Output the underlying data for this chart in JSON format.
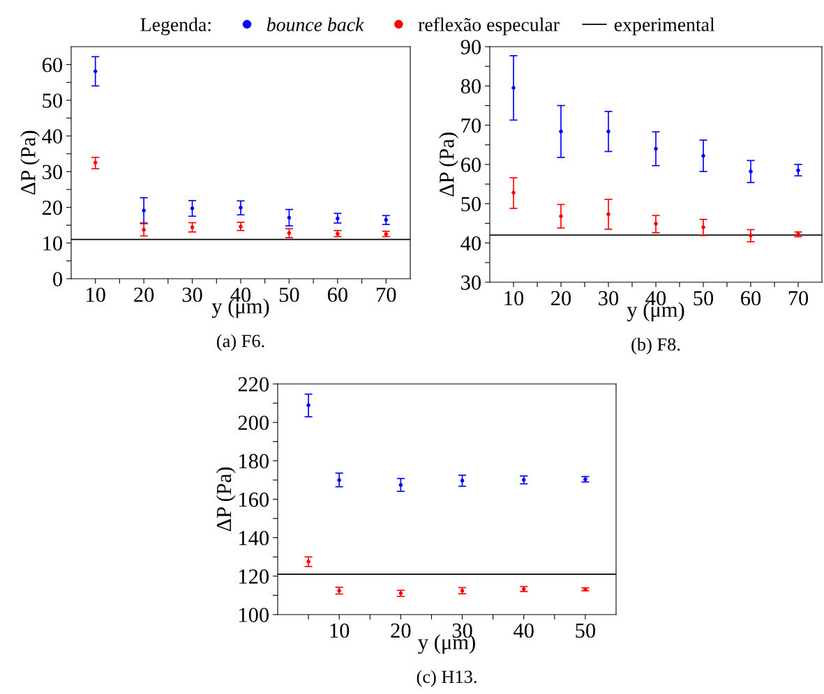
{
  "chart_data": [
    {
      "type": "scatter",
      "legend_title": "Legenda:",
      "legend": "top",
      "marker": "circle",
      "xlabel": "y (μm)",
      "ylabel": "ΔP (Pa)",
      "annotations": [
        "(a) F6."
      ],
      "x": [
        10,
        20,
        30,
        40,
        50,
        60,
        70
      ],
      "xlim": [
        5,
        75
      ],
      "ylim": [
        0,
        65
      ],
      "xticks": [
        10,
        {
          "value": 15,
          "label": null
        },
        20,
        {
          "value": 25,
          "label": null
        },
        30,
        {
          "value": 35,
          "label": null
        },
        40,
        {
          "value": 45,
          "label": null
        },
        50,
        {
          "value": 55,
          "label": null
        },
        60,
        {
          "value": 65,
          "label": null
        },
        70
      ],
      "yticks": [
        0,
        {
          "value": 5,
          "label": null
        },
        10,
        {
          "value": 15,
          "label": null
        },
        20,
        {
          "value": 25,
          "label": null
        },
        30,
        {
          "value": 35,
          "label": null
        },
        40,
        {
          "value": 45,
          "label": null
        },
        50,
        {
          "value": 55,
          "label": null
        },
        60
      ],
      "ref_lines": [
        {
          "axis": "y",
          "value": 11,
          "label": "experimental",
          "color": "#000000"
        }
      ],
      "series": [
        {
          "name": "bounce back",
          "color": "#0000ff",
          "values": [
            58.1,
            19.1,
            19.7,
            19.9,
            17.1,
            16.9,
            16.5
          ],
          "errors": [
            [
              54,
              62.2
            ],
            [
              15.6,
              22.7
            ],
            [
              17.5,
              21.9
            ],
            [
              17.9,
              21.8
            ],
            [
              14.8,
              19.4
            ],
            [
              15.6,
              18.3
            ],
            [
              15.2,
              17.7
            ]
          ]
        },
        {
          "name": "reflexão especular",
          "color": "#ff0000",
          "values": [
            32.5,
            13.7,
            14.4,
            14.6,
            12.8,
            12.6,
            12.5
          ],
          "errors": [
            [
              30.8,
              34
            ],
            [
              12,
              15.4
            ],
            [
              13.1,
              15.7
            ],
            [
              13.5,
              15.8
            ],
            [
              11.5,
              14
            ],
            [
              11.8,
              13.5
            ],
            [
              11.8,
              13.3
            ]
          ]
        }
      ]
    },
    {
      "type": "scatter",
      "marker": "circle",
      "xlabel": "y (μm)",
      "ylabel": "ΔP (Pa)",
      "annotations": [
        "(b) F8."
      ],
      "x": [
        10,
        20,
        30,
        40,
        50,
        60,
        70
      ],
      "xlim": [
        5,
        75
      ],
      "ylim": [
        30,
        90
      ],
      "xticks": [
        10,
        {
          "value": 15,
          "label": null
        },
        20,
        {
          "value": 25,
          "label": null
        },
        30,
        {
          "value": 35,
          "label": null
        },
        40,
        {
          "value": 45,
          "label": null
        },
        50,
        {
          "value": 55,
          "label": null
        },
        60,
        {
          "value": 65,
          "label": null
        },
        70
      ],
      "yticks": [
        30,
        {
          "value": 35,
          "label": null
        },
        40,
        {
          "value": 45,
          "label": null
        },
        50,
        {
          "value": 55,
          "label": null
        },
        60,
        {
          "value": 65,
          "label": null
        },
        70,
        {
          "value": 75,
          "label": null
        },
        80,
        {
          "value": 85,
          "label": null
        },
        90
      ],
      "ref_lines": [
        {
          "axis": "y",
          "value": 42,
          "color": "#000000"
        }
      ],
      "series": [
        {
          "color": "#0000ff",
          "values": [
            79.5,
            68.4,
            68.4,
            64.0,
            62.2,
            58.2,
            58.5
          ],
          "errors": [
            [
              71.3,
              87.7
            ],
            [
              61.8,
              75
            ],
            [
              63.3,
              73.5
            ],
            [
              59.7,
              68.3
            ],
            [
              58.2,
              66.2
            ],
            [
              55.4,
              61
            ],
            [
              57.1,
              60
            ]
          ]
        },
        {
          "color": "#ff0000",
          "values": [
            52.8,
            46.8,
            47.3,
            44.9,
            44.0,
            41.9,
            42.2
          ],
          "errors": [
            [
              48.8,
              56.6
            ],
            [
              43.8,
              49.8
            ],
            [
              43.5,
              51.1
            ],
            [
              42.6,
              47
            ],
            [
              41.9,
              46
            ],
            [
              40.3,
              43.4
            ],
            [
              41.6,
              42.8
            ]
          ]
        }
      ]
    },
    {
      "type": "scatter",
      "marker": "circle",
      "xlabel": "y (μm)",
      "ylabel": "ΔP (Pa)",
      "annotations": [
        "(c) H13."
      ],
      "x": [
        5,
        10,
        20,
        30,
        40,
        50
      ],
      "xlim": [
        0,
        55
      ],
      "ylim": [
        100,
        220
      ],
      "xticks": [
        {
          "value": 5,
          "label": null
        },
        10,
        {
          "value": 15,
          "label": null
        },
        20,
        {
          "value": 25,
          "label": null
        },
        30,
        {
          "value": 35,
          "label": null
        },
        40,
        {
          "value": 45,
          "label": null
        },
        50
      ],
      "yticks": [
        100,
        {
          "value": 110,
          "label": null
        },
        120,
        {
          "value": 130,
          "label": null
        },
        140,
        {
          "value": 150,
          "label": null
        },
        160,
        {
          "value": 170,
          "label": null
        },
        180,
        {
          "value": 190,
          "label": null
        },
        200,
        {
          "value": 210,
          "label": null
        },
        220
      ],
      "ref_lines": [
        {
          "axis": "y",
          "value": 121,
          "color": "#000000"
        }
      ],
      "series": [
        {
          "color": "#0000ff",
          "values": [
            208.9,
            170,
            167.4,
            169.7,
            170.1,
            170.3
          ],
          "errors": [
            [
              202.9,
              214.7
            ],
            [
              166.5,
              173.6
            ],
            [
              164.1,
              170.8
            ],
            [
              166.8,
              172.5
            ],
            [
              168,
              172.1
            ],
            [
              169,
              171.8
            ]
          ]
        },
        {
          "color": "#ff0000",
          "values": [
            127.5,
            112.4,
            111.1,
            112.4,
            113.2,
            113.1
          ],
          "errors": [
            [
              125,
              130
            ],
            [
              110.7,
              114.2
            ],
            [
              109.5,
              112.6
            ],
            [
              110.8,
              114
            ],
            [
              112,
              114.6
            ],
            [
              112.4,
              113.9
            ]
          ]
        }
      ]
    }
  ]
}
